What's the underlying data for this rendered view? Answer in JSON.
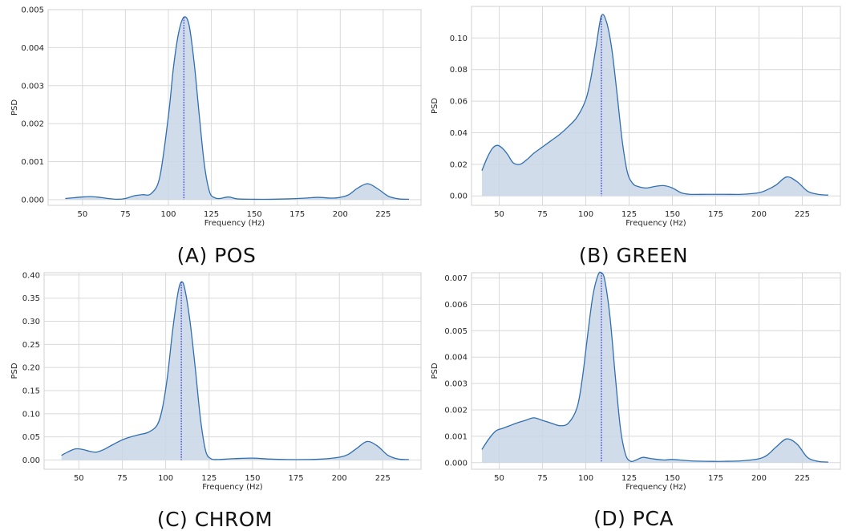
{
  "colors": {
    "line": "#2f6fb0",
    "fill": "#c9d6e8",
    "peak": "#1f1fd6",
    "grid": "#d9d9d9",
    "frame": "#d0d0d0"
  },
  "chart_data": [
    {
      "type": "area",
      "caption": "(A) POS",
      "xlabel": "Frequency (Hz)",
      "ylabel": "PSD",
      "xlim": [
        30,
        247
      ],
      "ylim": [
        -0.00015,
        0.005
      ],
      "xticks": [
        50,
        75,
        100,
        125,
        150,
        175,
        200,
        225
      ],
      "xtick_labels": [
        "50",
        "75",
        "100",
        "125",
        "150",
        "175",
        "200",
        "225"
      ],
      "yticks": [
        0,
        0.001,
        0.002,
        0.003,
        0.004,
        0.005
      ],
      "ytick_labels": [
        "0.000",
        "0.001",
        "0.002",
        "0.003",
        "0.004",
        "0.005"
      ],
      "peak_x": 109,
      "grid": true,
      "x": [
        40,
        45,
        50,
        55,
        60,
        65,
        70,
        75,
        80,
        85,
        90,
        95,
        100,
        103,
        106,
        109,
        112,
        115,
        118,
        121,
        124,
        127,
        130,
        135,
        140,
        150,
        160,
        170,
        180,
        187,
        195,
        200,
        205,
        210,
        216,
        222,
        228,
        234,
        240
      ],
      "y": [
        3e-05,
        5e-05,
        7e-05,
        8e-05,
        6e-05,
        3e-05,
        1e-05,
        3e-05,
        0.0001,
        0.00013,
        0.00016,
        0.0006,
        0.0022,
        0.0035,
        0.0044,
        0.0048,
        0.0046,
        0.0036,
        0.0022,
        0.0009,
        0.0002,
        5e-05,
        3e-05,
        7e-05,
        2e-05,
        1e-05,
        1e-05,
        2e-05,
        4e-05,
        6e-05,
        4e-05,
        6e-05,
        0.00013,
        0.0003,
        0.00042,
        0.00028,
        9e-05,
        2e-05,
        1e-05
      ]
    },
    {
      "type": "area",
      "caption": "(B) GREEN",
      "xlabel": "Frequency (Hz)",
      "ylabel": "PSD",
      "xlim": [
        34,
        247
      ],
      "ylim": [
        -0.006,
        0.12
      ],
      "xticks": [
        50,
        75,
        100,
        125,
        150,
        175,
        200,
        225
      ],
      "xtick_labels": [
        "50",
        "75",
        "100",
        "125",
        "150",
        "175",
        "200",
        "225"
      ],
      "yticks": [
        0,
        0.02,
        0.04,
        0.06,
        0.08,
        0.1
      ],
      "ytick_labels": [
        "0.00",
        "0.02",
        "0.04",
        "0.06",
        "0.08",
        "0.10"
      ],
      "peak_x": 109,
      "grid": true,
      "x": [
        40,
        43,
        46,
        49,
        52,
        55,
        58,
        62,
        66,
        70,
        75,
        80,
        85,
        90,
        95,
        100,
        103,
        106,
        109,
        112,
        115,
        118,
        121,
        124,
        127,
        130,
        135,
        140,
        145,
        150,
        155,
        160,
        170,
        180,
        190,
        200,
        205,
        210,
        216,
        222,
        228,
        234,
        240
      ],
      "y": [
        0.016,
        0.024,
        0.03,
        0.032,
        0.03,
        0.026,
        0.021,
        0.02,
        0.023,
        0.027,
        0.031,
        0.035,
        0.039,
        0.044,
        0.05,
        0.061,
        0.075,
        0.095,
        0.114,
        0.11,
        0.093,
        0.065,
        0.035,
        0.015,
        0.008,
        0.006,
        0.005,
        0.006,
        0.0065,
        0.005,
        0.002,
        0.001,
        0.001,
        0.001,
        0.001,
        0.002,
        0.004,
        0.007,
        0.012,
        0.009,
        0.003,
        0.001,
        0.0005
      ]
    },
    {
      "type": "area",
      "caption": "(C) CHROM",
      "xlabel": "Frequency (Hz)",
      "ylabel": "PSD",
      "xlim": [
        30,
        247
      ],
      "ylim": [
        -0.02,
        0.405
      ],
      "xticks": [
        50,
        75,
        100,
        125,
        150,
        175,
        200,
        225
      ],
      "xtick_labels": [
        "50",
        "75",
        "100",
        "125",
        "150",
        "175",
        "200",
        "225"
      ],
      "yticks": [
        0,
        0.05,
        0.1,
        0.15,
        0.2,
        0.25,
        0.3,
        0.35,
        0.4
      ],
      "ytick_labels": [
        "0.00",
        "0.05",
        "0.10",
        "0.15",
        "0.20",
        "0.25",
        "0.30",
        "0.35",
        "0.40"
      ],
      "peak_x": 109,
      "grid": true,
      "x": [
        40,
        44,
        48,
        52,
        56,
        60,
        64,
        68,
        72,
        76,
        80,
        85,
        90,
        95,
        98,
        101,
        104,
        107,
        109,
        111,
        114,
        117,
        120,
        123,
        126,
        130,
        135,
        140,
        150,
        160,
        170,
        180,
        190,
        200,
        205,
        210,
        216,
        222,
        228,
        234,
        240
      ],
      "y": [
        0.01,
        0.018,
        0.024,
        0.023,
        0.019,
        0.017,
        0.022,
        0.03,
        0.038,
        0.045,
        0.05,
        0.055,
        0.06,
        0.075,
        0.11,
        0.18,
        0.28,
        0.36,
        0.385,
        0.37,
        0.3,
        0.2,
        0.09,
        0.02,
        0.003,
        0.001,
        0.002,
        0.003,
        0.004,
        0.002,
        0.001,
        0.001,
        0.002,
        0.006,
        0.012,
        0.025,
        0.04,
        0.03,
        0.01,
        0.002,
        0.001
      ]
    },
    {
      "type": "area",
      "caption": "(D) PCA",
      "xlabel": "Frequency (Hz)",
      "ylabel": "PSD",
      "xlim": [
        34,
        247
      ],
      "ylim": [
        -0.00025,
        0.0072
      ],
      "xticks": [
        50,
        75,
        100,
        125,
        150,
        175,
        200,
        225
      ],
      "xtick_labels": [
        "50",
        "75",
        "100",
        "125",
        "150",
        "175",
        "200",
        "225"
      ],
      "yticks": [
        0,
        0.001,
        0.002,
        0.003,
        0.004,
        0.005,
        0.006,
        0.007
      ],
      "ytick_labels": [
        "0.000",
        "0.001",
        "0.002",
        "0.003",
        "0.004",
        "0.005",
        "0.006",
        "0.007"
      ],
      "peak_x": 109,
      "grid": true,
      "x": [
        40,
        44,
        48,
        52,
        56,
        60,
        65,
        70,
        75,
        80,
        85,
        90,
        95,
        98,
        101,
        104,
        107,
        109,
        111,
        114,
        117,
        120,
        123,
        126,
        129,
        133,
        138,
        145,
        150,
        160,
        170,
        180,
        190,
        200,
        205,
        210,
        216,
        222,
        228,
        234,
        240
      ],
      "y": [
        0.0005,
        0.0009,
        0.0012,
        0.0013,
        0.0014,
        0.0015,
        0.0016,
        0.0017,
        0.0016,
        0.0015,
        0.0014,
        0.0015,
        0.0021,
        0.0032,
        0.0048,
        0.0063,
        0.0071,
        0.0072,
        0.0069,
        0.0055,
        0.0033,
        0.0013,
        0.0003,
        5e-05,
        0.0001,
        0.0002,
        0.00015,
        0.0001,
        0.00012,
        7e-05,
        5e-05,
        5e-05,
        7e-05,
        0.00015,
        0.0003,
        0.0006,
        0.0009,
        0.0007,
        0.0002,
        5e-05,
        2e-05
      ]
    }
  ]
}
